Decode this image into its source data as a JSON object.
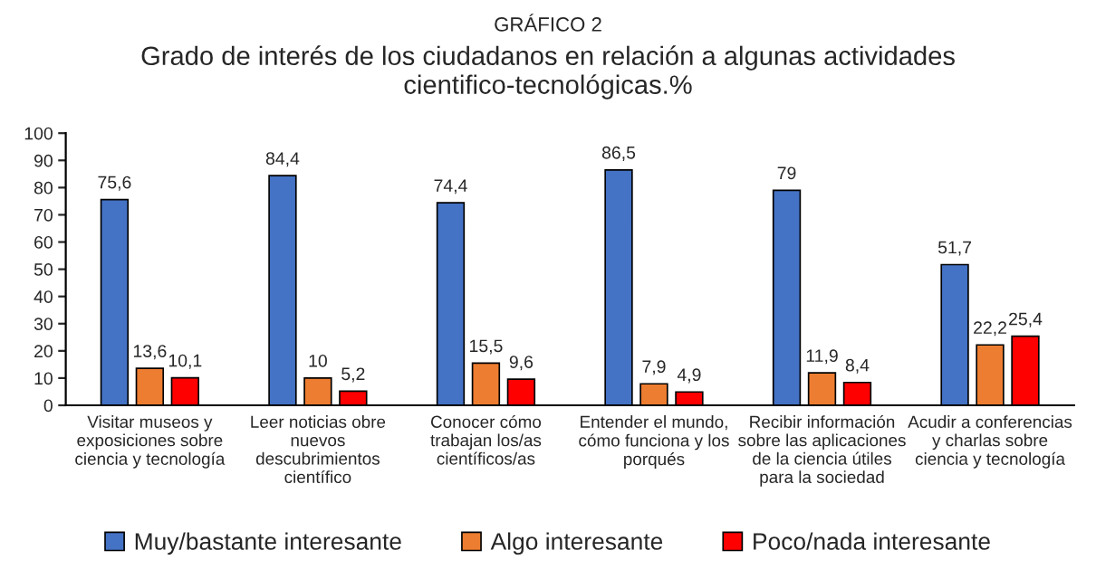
{
  "chart_data": {
    "type": "bar",
    "title": "GRÁFICO 2",
    "subtitle": "Grado de interés de los ciudadanos en relación a algunas actividades cientifico-tecnológicas.%",
    "categories": [
      "Visitar museos y\nexposiciones sobre\nciencia y tecnología",
      "Leer noticias obre\nnuevos\ndescubrimientos\ncientífico",
      "Conocer cómo\ntrabajan los/as\ncientíficos/as",
      "Entender el mundo,\ncómo funciona y los\nporqués",
      "Recibir información\nsobre las aplicaciones\nde la ciencia útiles\npara la sociedad",
      "Acudir a conferencias\ny charlas sobre\nciencia y tecnología"
    ],
    "series": [
      {
        "name": "Muy/bastante interesante",
        "color": "#4472c4",
        "values": [
          75.6,
          84.4,
          74.4,
          86.5,
          79,
          51.7
        ],
        "value_labels": [
          "75,6",
          "84,4",
          "74,4",
          "86,5",
          "79",
          "51,7"
        ]
      },
      {
        "name": "Algo interesante",
        "color": "#ed7d31",
        "values": [
          13.6,
          10,
          15.5,
          7.9,
          11.9,
          22.2
        ],
        "value_labels": [
          "13,6",
          "10",
          "15,5",
          "7,9",
          "11,9",
          "22,2"
        ]
      },
      {
        "name": "Poco/nada interesante",
        "color": "#ff0000",
        "values": [
          10.1,
          5.2,
          9.6,
          4.9,
          8.4,
          25.4
        ],
        "value_labels": [
          "10,1",
          "5,2",
          "9,6",
          "4,9",
          "8,4",
          "25,4"
        ]
      }
    ],
    "ylim": [
      0,
      100
    ],
    "yticks": [
      0,
      10,
      20,
      30,
      40,
      50,
      60,
      70,
      80,
      90,
      100
    ],
    "legend": "bottom"
  }
}
